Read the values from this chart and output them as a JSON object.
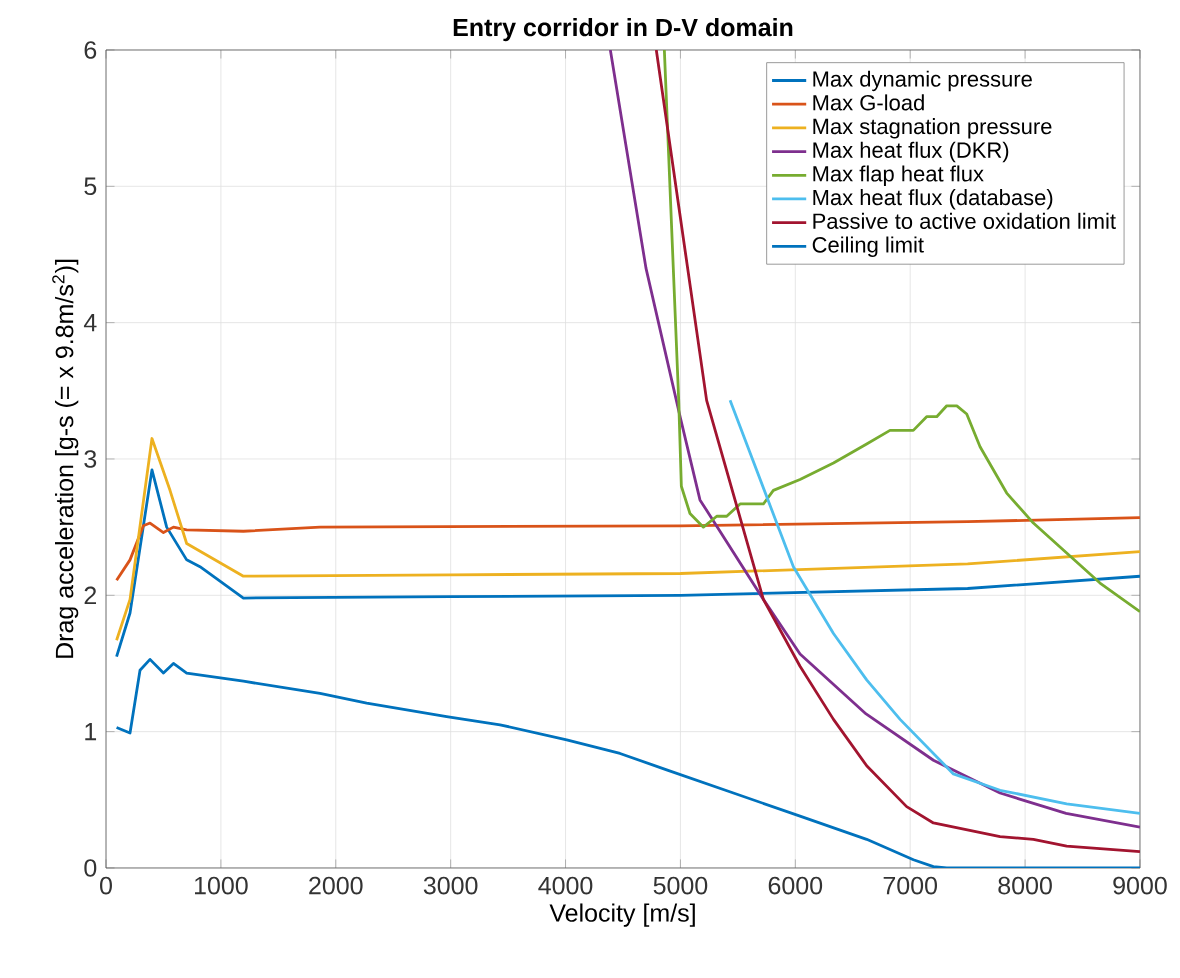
{
  "chart_data": {
    "type": "line",
    "title": "Entry corridor in D-V domain",
    "xlabel": "Velocity [m/s]",
    "ylabel": "Drag acceleration [g-s (= x 9.8m/s$^{2}$)]",
    "xlim": [
      0,
      9000
    ],
    "ylim": [
      0,
      6
    ],
    "xticks": [
      0,
      1000,
      2000,
      3000,
      4000,
      5000,
      6000,
      7000,
      8000,
      9000
    ],
    "yticks": [
      0,
      1,
      2,
      3,
      4,
      5,
      6
    ],
    "grid": true,
    "legend": "top right",
    "line_style": "solid",
    "marker": "none",
    "series": [
      {
        "name": "Max dynamic pressure",
        "color": "#0072bd",
        "x": [
          92,
          209,
          400,
          528,
          702,
          818,
          1196,
          3000,
          5000,
          7500,
          9000
        ],
        "values": [
          1.55,
          1.87,
          2.92,
          2.5,
          2.26,
          2.21,
          1.98,
          1.99,
          2.0,
          2.05,
          2.14
        ]
      },
      {
        "name": "Max G-load",
        "color": "#d95319",
        "x": [
          92,
          209,
          325,
          383,
          500,
          587,
          702,
          1196,
          1863,
          5000,
          7500,
          9000
        ],
        "values": [
          2.11,
          2.26,
          2.51,
          2.53,
          2.46,
          2.5,
          2.48,
          2.47,
          2.5,
          2.51,
          2.54,
          2.57
        ]
      },
      {
        "name": "Max stagnation pressure",
        "color": "#edb120",
        "x": [
          92,
          209,
          400,
          557,
          702,
          1196,
          3000,
          5000,
          7500,
          9000
        ],
        "values": [
          1.67,
          1.97,
          3.15,
          2.77,
          2.38,
          2.14,
          2.15,
          2.16,
          2.23,
          2.32
        ]
      },
      {
        "name": "Max heat flux (DKR)",
        "color": "#7e2f8e",
        "x": [
          4390,
          4700,
          5000,
          5170,
          5722,
          6041,
          6616,
          7202,
          7782,
          8357,
          9000
        ],
        "values": [
          6,
          4.4,
          3.3,
          2.7,
          1.97,
          1.57,
          1.13,
          0.79,
          0.55,
          0.4,
          0.3
        ]
      },
      {
        "name": "Max flap heat flux",
        "color": "#77ac30",
        "x": [
          4860,
          4985,
          5008,
          5083,
          5200,
          5316,
          5403,
          5519,
          5722,
          5809,
          6041,
          6332,
          6621,
          6824,
          7027,
          7143,
          7231,
          7318,
          7406,
          7492,
          7608,
          7840,
          8072,
          8362,
          8652,
          9000
        ],
        "values": [
          6,
          3.43,
          2.8,
          2.6,
          2.5,
          2.58,
          2.58,
          2.67,
          2.67,
          2.77,
          2.85,
          2.97,
          3.11,
          3.21,
          3.21,
          3.31,
          3.31,
          3.39,
          3.39,
          3.33,
          3.09,
          2.75,
          2.53,
          2.31,
          2.09,
          1.88
        ]
      },
      {
        "name": "Max heat flux (database)",
        "color": "#4dbeee",
        "x": [
          5432,
          5983,
          6332,
          6621,
          6912,
          7376,
          7782,
          8362,
          9000
        ],
        "values": [
          3.43,
          2.21,
          1.72,
          1.38,
          1.09,
          0.69,
          0.57,
          0.47,
          0.4
        ]
      },
      {
        "name": "Passive to active oxidation limit",
        "color": "#a2142f",
        "x": [
          4790,
          5228,
          5722,
          6041,
          6332,
          6621,
          6969,
          7202,
          7782,
          8072,
          8362,
          9000
        ],
        "values": [
          6,
          3.43,
          1.97,
          1.48,
          1.09,
          0.75,
          0.45,
          0.33,
          0.23,
          0.21,
          0.16,
          0.12
        ]
      },
      {
        "name": "Ceiling limit",
        "color": "#0072bd",
        "x": [
          92,
          209,
          296,
          383,
          500,
          587,
          702,
          1196,
          1863,
          2269,
          2965,
          3430,
          4010,
          4474,
          4880,
          5461,
          6041,
          6621,
          7028,
          7202,
          7318,
          9000
        ],
        "values": [
          1.03,
          0.99,
          1.45,
          1.53,
          1.43,
          1.5,
          1.43,
          1.37,
          1.28,
          1.21,
          1.11,
          1.05,
          0.94,
          0.84,
          0.72,
          0.55,
          0.38,
          0.21,
          0.06,
          0.01,
          0,
          0
        ]
      }
    ]
  }
}
